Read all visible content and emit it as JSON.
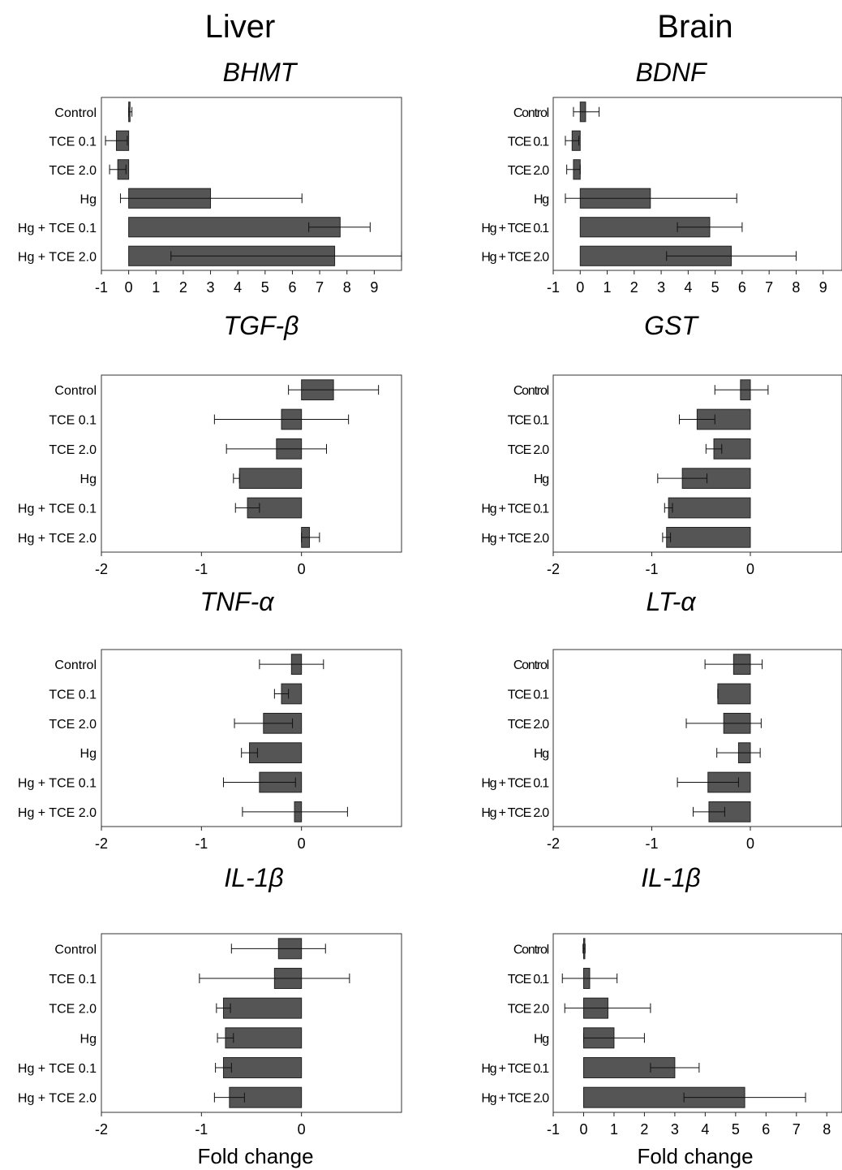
{
  "columns": [
    {
      "key": "liver",
      "title": "Liver"
    },
    {
      "key": "brain",
      "title": "Brain"
    }
  ],
  "chart_data": [
    {
      "type": "bar",
      "orientation": "horizontal",
      "column": "liver",
      "title": "BHMT",
      "categories": [
        "Control",
        "TCE 0.1",
        "TCE 2.0",
        "Hg",
        "Hg + TCE 0.1",
        "Hg + TCE 2.0"
      ],
      "values": [
        0.05,
        -0.45,
        -0.4,
        3.0,
        7.75,
        7.55
      ],
      "error_low": [
        0.0,
        -0.85,
        -0.7,
        -0.3,
        6.6,
        1.55
      ],
      "error_high": [
        0.12,
        -0.05,
        -0.1,
        6.35,
        8.85,
        10.0
      ],
      "xlim": [
        -1,
        10
      ],
      "xticks": [
        "-1",
        "0",
        "1",
        "2",
        "3",
        "4",
        "5",
        "6",
        "7",
        "8",
        "9"
      ],
      "xlabel": ""
    },
    {
      "type": "bar",
      "orientation": "horizontal",
      "column": "brain",
      "title": "BDNF",
      "categories": [
        "Control",
        "TCE 0.1",
        "TCE 2.0",
        "Hg",
        "Hg + TCE 0.1",
        "Hg + TCE 2.0"
      ],
      "values": [
        0.2,
        -0.3,
        -0.25,
        2.6,
        4.8,
        5.6
      ],
      "error_low": [
        -0.25,
        -0.55,
        -0.5,
        -0.55,
        3.6,
        3.2
      ],
      "error_high": [
        0.7,
        -0.05,
        0.0,
        5.8,
        6.0,
        8.0
      ],
      "xlim": [
        -1,
        9.7
      ],
      "xticks": [
        "-1",
        "0",
        "1",
        "2",
        "3",
        "4",
        "5",
        "6",
        "7",
        "8",
        "9"
      ],
      "xlabel": ""
    },
    {
      "type": "bar",
      "orientation": "horizontal",
      "column": "liver",
      "title": "TGF-β",
      "categories": [
        "Control",
        "TCE 0.1",
        "TCE 2.0",
        "Hg",
        "Hg + TCE 0.1",
        "Hg + TCE 2.0"
      ],
      "values": [
        0.32,
        -0.2,
        -0.25,
        -0.62,
        -0.54,
        0.08
      ],
      "error_low": [
        -0.13,
        -0.87,
        -0.75,
        -0.68,
        -0.66,
        0.0
      ],
      "error_high": [
        0.77,
        0.47,
        0.25,
        -0.62,
        -0.42,
        0.18
      ],
      "xlim": [
        -2,
        1
      ],
      "xticks": [
        "-2",
        "-1",
        "0"
      ],
      "xlabel": ""
    },
    {
      "type": "bar",
      "orientation": "horizontal",
      "column": "brain",
      "title": "GST",
      "categories": [
        "Control",
        "TCE 0.1",
        "TCE 2.0",
        "Hg",
        "Hg + TCE 0.1",
        "Hg + TCE 2.0"
      ],
      "values": [
        -0.1,
        -0.54,
        -0.37,
        -0.69,
        -0.83,
        -0.85
      ],
      "error_low": [
        -0.36,
        -0.72,
        -0.45,
        -0.94,
        -0.87,
        -0.89
      ],
      "error_high": [
        0.18,
        -0.36,
        -0.29,
        -0.44,
        -0.79,
        -0.81
      ],
      "xlim": [
        -2,
        0.93
      ],
      "xticks": [
        "-2",
        "-1",
        "0"
      ],
      "xlabel": ""
    },
    {
      "type": "bar",
      "orientation": "horizontal",
      "column": "liver",
      "title": "TNF-α",
      "categories": [
        "Control",
        "TCE 0.1",
        "TCE 2.0",
        "Hg",
        "Hg + TCE 0.1",
        "Hg + TCE 2.0"
      ],
      "values": [
        -0.1,
        -0.2,
        -0.38,
        -0.52,
        -0.42,
        -0.07
      ],
      "error_low": [
        -0.42,
        -0.27,
        -0.67,
        -0.6,
        -0.78,
        -0.59
      ],
      "error_high": [
        0.22,
        -0.13,
        -0.09,
        -0.44,
        -0.06,
        0.46
      ],
      "xlim": [
        -2,
        1
      ],
      "xticks": [
        "-2",
        "-1",
        "0"
      ],
      "xlabel": ""
    },
    {
      "type": "bar",
      "orientation": "horizontal",
      "column": "brain",
      "title": "LT-α",
      "categories": [
        "Control",
        "TCE 0.1",
        "TCE 2.0",
        "Hg",
        "Hg + TCE 0.1",
        "Hg + TCE 2.0"
      ],
      "values": [
        -0.17,
        -0.33,
        -0.27,
        -0.12,
        -0.43,
        -0.42
      ],
      "error_low": [
        -0.46,
        -0.33,
        -0.65,
        -0.34,
        -0.74,
        -0.58
      ],
      "error_high": [
        0.12,
        -0.33,
        0.11,
        0.1,
        -0.12,
        -0.26
      ],
      "xlim": [
        -2,
        0.93
      ],
      "xticks": [
        "-2",
        "-1",
        "0"
      ],
      "xlabel": ""
    },
    {
      "type": "bar",
      "orientation": "horizontal",
      "column": "liver",
      "title": "IL-1β",
      "categories": [
        "Control",
        "TCE 0.1",
        "TCE 2.0",
        "Hg",
        "Hg + TCE 0.1",
        "Hg + TCE 2.0"
      ],
      "values": [
        -0.23,
        -0.27,
        -0.78,
        -0.76,
        -0.78,
        -0.72
      ],
      "error_low": [
        -0.7,
        -1.02,
        -0.85,
        -0.84,
        -0.86,
        -0.87
      ],
      "error_high": [
        0.24,
        0.48,
        -0.71,
        -0.68,
        -0.7,
        -0.57
      ],
      "xlim": [
        -2,
        1
      ],
      "xticks": [
        "-2",
        "-1",
        "0"
      ],
      "xlabel": "Fold change"
    },
    {
      "type": "bar",
      "orientation": "horizontal",
      "column": "brain",
      "title": "IL-1β",
      "categories": [
        "Control",
        "TCE 0.1",
        "TCE 2.0",
        "Hg",
        "Hg + TCE 0.1",
        "Hg + TCE 2.0"
      ],
      "values": [
        0.0,
        0.2,
        0.8,
        1.0,
        3.0,
        5.3
      ],
      "error_low": [
        -0.02,
        -0.7,
        -0.62,
        0.0,
        2.2,
        3.3
      ],
      "error_high": [
        0.05,
        1.1,
        2.2,
        2.0,
        3.8,
        7.3
      ],
      "xlim": [
        -1,
        8.5
      ],
      "xticks": [
        "-1",
        "0",
        "1",
        "2",
        "3",
        "4",
        "5",
        "6",
        "7",
        "8"
      ],
      "xlabel": "Fold change"
    }
  ]
}
